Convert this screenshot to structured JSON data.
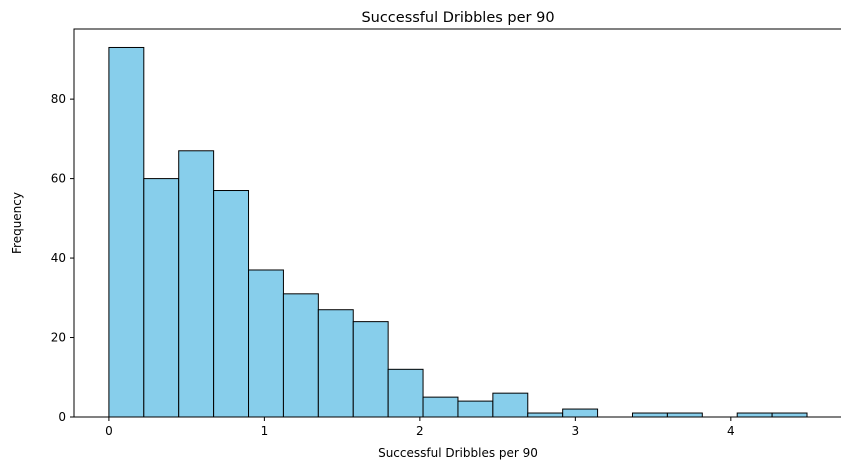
{
  "chart_data": {
    "type": "bar",
    "title": "Successful Dribbles per 90",
    "xlabel": "Successful Dribbles per 90",
    "ylabel": "Frequency",
    "bin_start": 0,
    "bin_width": 0.2245,
    "values": [
      93,
      60,
      67,
      57,
      37,
      31,
      27,
      24,
      12,
      5,
      4,
      6,
      1,
      2,
      0,
      1,
      1,
      0,
      1,
      1
    ],
    "xlim": [
      -0.2245,
      4.715
    ],
    "ylim": [
      0,
      97.65
    ],
    "xticks": [
      0,
      1,
      2,
      3,
      4
    ],
    "yticks": [
      0,
      20,
      40,
      60,
      80
    ],
    "bar_color": "#87ceeb",
    "edge_color": "#000000",
    "grid": false,
    "legend": "none"
  }
}
